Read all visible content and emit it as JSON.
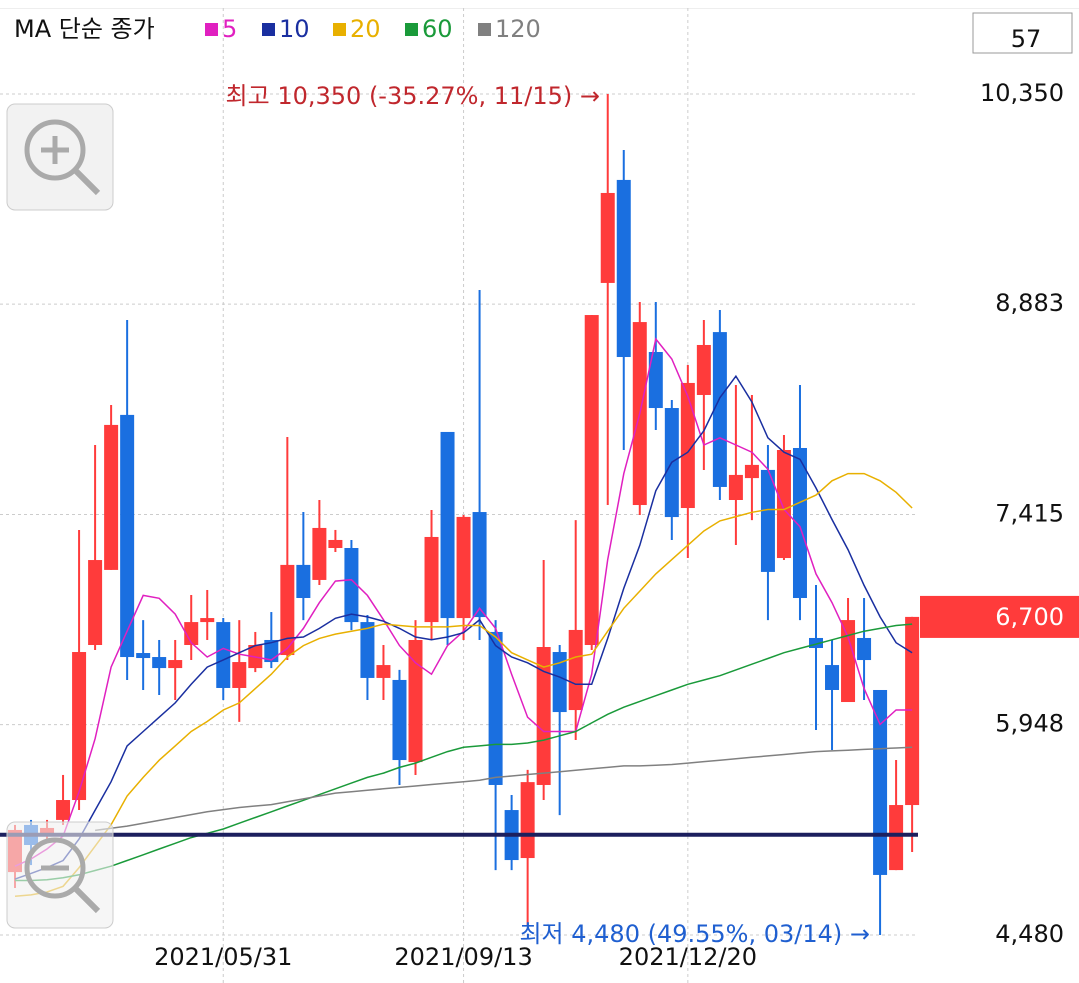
{
  "chart_data": {
    "type": "candlestick",
    "legend_title": "MA 단순 종가",
    "zoom_count": 57,
    "categories": [
      null,
      null,
      null,
      null,
      null,
      null,
      null,
      null,
      null,
      null,
      null,
      null,
      null,
      "2021/05/31",
      null,
      null,
      null,
      null,
      null,
      null,
      null,
      null,
      null,
      null,
      null,
      null,
      null,
      null,
      "2021/09/13",
      null,
      null,
      null,
      null,
      null,
      null,
      null,
      null,
      null,
      null,
      null,
      null,
      null,
      "2021/12/20",
      null,
      null,
      null,
      null,
      null,
      null,
      null,
      null,
      null,
      null,
      null,
      null,
      null,
      null
    ],
    "open": [
      4919,
      5248,
      5178,
      5283,
      5422,
      6504,
      7028,
      8110,
      6448,
      6420,
      6343,
      6504,
      6664,
      6664,
      6204,
      6343,
      6539,
      6434,
      7063,
      6958,
      7181,
      7181,
      6664,
      6274,
      6260,
      5687,
      6664,
      7991,
      6692,
      7432,
      6595,
      5352,
      5017,
      5527,
      6455,
      6050,
      6504,
      9031,
      9750,
      7481,
      8549,
      8158,
      7460,
      8249,
      8688,
      7516,
      7669,
      7726,
      7111,
      7879,
      6553,
      6364,
      6106,
      6553,
      6190,
      4933,
      5387
    ],
    "high": [
      5248,
      5283,
      5283,
      5597,
      7307,
      7900,
      8179,
      8772,
      6678,
      6539,
      6539,
      6853,
      6888,
      6692,
      6678,
      6595,
      6734,
      7956,
      7432,
      7516,
      7307,
      7237,
      6713,
      6504,
      6330,
      6678,
      7446,
      7991,
      7411,
      8982,
      6678,
      5457,
      5632,
      7097,
      6504,
      7376,
      8807,
      10350,
      9959,
      8898,
      8898,
      8214,
      8458,
      8772,
      8842,
      8319,
      8249,
      7900,
      7970,
      8319,
      6923,
      6539,
      6832,
      6832,
      6190,
      5701,
      6700
    ],
    "low": [
      4808,
      4968,
      5143,
      5248,
      5352,
      6469,
      7028,
      6260,
      6190,
      6155,
      6120,
      6399,
      6539,
      6120,
      5967,
      6315,
      6343,
      6399,
      6678,
      6923,
      7153,
      6608,
      6120,
      6120,
      5527,
      5597,
      6539,
      6504,
      6539,
      6539,
      4933,
      4933,
      4540,
      5422,
      5317,
      5841,
      6469,
      7481,
      7865,
      7411,
      8005,
      7237,
      7111,
      7725,
      7516,
      7202,
      7376,
      6678,
      7097,
      6678,
      5911,
      5771,
      6106,
      6120,
      4480,
      4933,
      5059
    ],
    "close": [
      5213,
      5108,
      5227,
      5422,
      6455,
      7097,
      8040,
      6420,
      6413,
      6343,
      6399,
      6664,
      6692,
      6204,
      6385,
      6504,
      6385,
      7063,
      6832,
      7321,
      7237,
      6664,
      6274,
      6364,
      5701,
      6539,
      7258,
      6692,
      7398,
      6699,
      5527,
      5003,
      5547,
      6490,
      6036,
      6609,
      8807,
      9659,
      8514,
      8758,
      8158,
      7397,
      8333,
      8598,
      7607,
      7691,
      7761,
      7014,
      7865,
      6832,
      6483,
      6190,
      6678,
      6399,
      4899,
      5387,
      6700
    ],
    "up_color": "#ff3b3b",
    "down_color": "#1a6fe0",
    "series": [
      {
        "name": "5",
        "color": "#e020c0",
        "values": [
          4960,
          5010,
          5080,
          5170,
          5480,
          5850,
          6350,
          6600,
          6850,
          6830,
          6720,
          6520,
          6420,
          6480,
          6440,
          6420,
          6400,
          6480,
          6620,
          6800,
          6950,
          6960,
          6850,
          6680,
          6500,
          6380,
          6300,
          6500,
          6600,
          6760,
          6620,
          6300,
          6000,
          5900,
          5900,
          5900,
          6300,
          7100,
          7700,
          8120,
          8640,
          8500,
          8240,
          7900,
          7950,
          7900,
          7850,
          7730,
          7450,
          7330,
          7000,
          6800,
          6560,
          6200,
          5950,
          6050,
          6050
        ]
      },
      {
        "name": "10",
        "color": "#1a2fa0",
        "values": [
          4870,
          4910,
          4950,
          5000,
          5150,
          5350,
          5550,
          5800,
          5900,
          6000,
          6100,
          6230,
          6350,
          6400,
          6450,
          6500,
          6520,
          6550,
          6560,
          6620,
          6690,
          6720,
          6700,
          6670,
          6620,
          6560,
          6540,
          6560,
          6590,
          6680,
          6500,
          6420,
          6380,
          6320,
          6280,
          6230,
          6230,
          6550,
          6900,
          7200,
          7580,
          7780,
          7850,
          8000,
          8230,
          8380,
          8200,
          7950,
          7850,
          7800,
          7600,
          7380,
          7170,
          6920,
          6700,
          6520,
          6450
        ]
      },
      {
        "name": "20",
        "color": "#e8b000",
        "values": [
          4750,
          4760,
          4780,
          4820,
          4950,
          5100,
          5250,
          5450,
          5580,
          5700,
          5800,
          5900,
          5970,
          6050,
          6100,
          6200,
          6300,
          6420,
          6500,
          6550,
          6580,
          6600,
          6620,
          6650,
          6640,
          6630,
          6630,
          6630,
          6640,
          6640,
          6560,
          6450,
          6400,
          6350,
          6380,
          6420,
          6440,
          6600,
          6760,
          6880,
          7000,
          7100,
          7200,
          7300,
          7370,
          7400,
          7430,
          7450,
          7450,
          7500,
          7550,
          7650,
          7700,
          7700,
          7650,
          7570,
          7460
        ]
      },
      {
        "name": "60",
        "color": "#1a9a3a",
        "values": [
          4860,
          4860,
          4865,
          4880,
          4900,
          4930,
          4960,
          5000,
          5040,
          5080,
          5120,
          5160,
          5190,
          5220,
          5260,
          5300,
          5340,
          5380,
          5420,
          5460,
          5500,
          5540,
          5580,
          5610,
          5650,
          5680,
          5720,
          5760,
          5790,
          5800,
          5810,
          5810,
          5820,
          5840,
          5870,
          5900,
          5960,
          6020,
          6070,
          6110,
          6150,
          6190,
          6230,
          6260,
          6290,
          6330,
          6370,
          6410,
          6450,
          6480,
          6510,
          6540,
          6570,
          6600,
          6620,
          6640,
          6650
        ]
      },
      {
        "name": "120",
        "color": "#808080",
        "values": [
          null,
          null,
          null,
          null,
          null,
          5210,
          5225,
          5240,
          5260,
          5280,
          5300,
          5320,
          5340,
          5355,
          5370,
          5380,
          5390,
          5410,
          5430,
          5450,
          5470,
          5480,
          5490,
          5500,
          5510,
          5520,
          5530,
          5540,
          5550,
          5560,
          5580,
          5590,
          5600,
          5610,
          5620,
          5630,
          5640,
          5650,
          5660,
          5660,
          5665,
          5670,
          5680,
          5690,
          5700,
          5710,
          5720,
          5730,
          5740,
          5750,
          5760,
          5765,
          5770,
          5775,
          5780,
          5785,
          5790
        ]
      }
    ],
    "hline": 5180,
    "current_price": {
      "value": 6700,
      "label": "6,700"
    },
    "annotations": [
      "최고 10,350 (-35.27%, 11/15) →",
      "최저 4,480 (49.55%, 03/14) →"
    ],
    "ylim": [
      4445,
      10950
    ],
    "yticks": [
      {
        "value": 4480,
        "label": "4,480"
      },
      {
        "value": 5948,
        "label": "5,948"
      },
      {
        "value": 7415,
        "label": "7,415"
      },
      {
        "value": 8883,
        "label": "8,883"
      },
      {
        "value": 10350,
        "label": "10,350"
      }
    ],
    "grid": true
  }
}
